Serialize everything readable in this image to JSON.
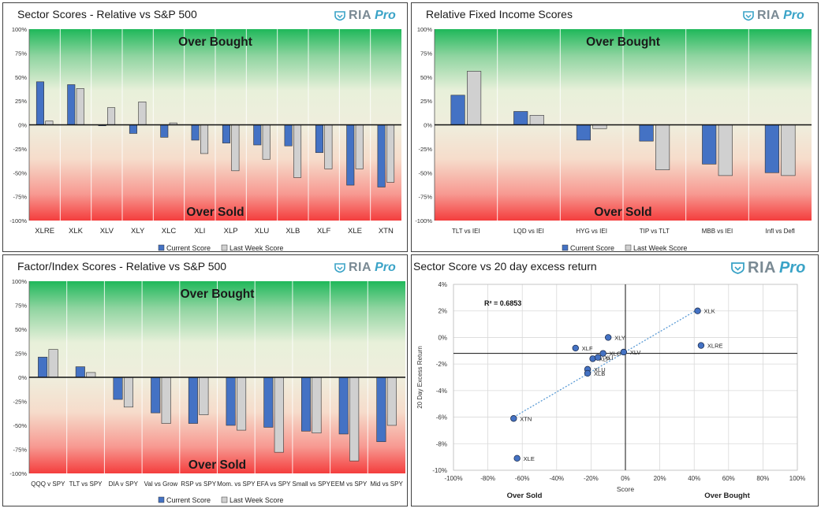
{
  "brand": {
    "ria": "RIA",
    "pro": "Pro"
  },
  "colors": {
    "current": "#4472c4",
    "last": "#d0d0d0",
    "dot": "#4472c4",
    "trend": "#5b9bd5"
  },
  "zones": {
    "overbought": "Over Bought",
    "oversold": "Over Sold"
  },
  "chart_data": [
    {
      "type": "bar",
      "title": "Sector Scores - Relative vs S&P 500",
      "categories": [
        "XLRE",
        "XLK",
        "XLV",
        "XLY",
        "XLC",
        "XLI",
        "XLP",
        "XLU",
        "XLB",
        "XLF",
        "XLE",
        "XTN"
      ],
      "series": [
        {
          "name": "Current Score",
          "values": [
            45,
            42,
            -1,
            -9,
            -13,
            -16,
            -19,
            -21,
            -22,
            -29,
            -63,
            -65
          ]
        },
        {
          "name": "Last Week Score",
          "values": [
            4,
            38,
            18,
            24,
            2,
            -30,
            -48,
            -36,
            -55,
            -46,
            -46,
            -60
          ]
        }
      ],
      "ylim": [
        -100,
        100
      ],
      "yticks": [
        "100%",
        "75%",
        "50%",
        "25%",
        "0%",
        "-25%",
        "-50%",
        "-75%",
        "-100%"
      ],
      "annotations": [
        "Over Bought",
        "Over Sold"
      ]
    },
    {
      "type": "bar",
      "title": "Relative Fixed Income Scores",
      "categories": [
        "TLT vs IEI",
        "LQD vs IEI",
        "HYG vs IEI",
        "TIP vs TLT",
        "MBB vs IEI",
        "Infl vs Defl"
      ],
      "series": [
        {
          "name": "Current Score",
          "values": [
            31,
            14,
            -16,
            -17,
            -41,
            -50
          ]
        },
        {
          "name": "Last Week Score",
          "values": [
            56,
            10,
            -4,
            -47,
            -53,
            -53
          ]
        }
      ],
      "ylim": [
        -100,
        100
      ],
      "yticks": [
        "100%",
        "75%",
        "50%",
        "25%",
        "0%",
        "-25%",
        "-50%",
        "-75%",
        "-100%"
      ],
      "annotations": [
        "Over Bought",
        "Over Sold"
      ]
    },
    {
      "type": "bar",
      "title": "Factor/Index Scores - Relative vs S&P 500",
      "categories": [
        "QQQ v SPY",
        "TLT vs SPY",
        "DIA v SPY",
        "Val vs Grow",
        "RSP vs SPY",
        "Mom. vs SPY",
        "EFA vs SPY",
        "Small vs SPY",
        "EEM vs SPY",
        "Mid vs SPY"
      ],
      "series": [
        {
          "name": "Current Score",
          "values": [
            21,
            11,
            -23,
            -37,
            -48,
            -50,
            -52,
            -56,
            -59,
            -67
          ]
        },
        {
          "name": "Last Week Score",
          "values": [
            29,
            5,
            -31,
            -48,
            -39,
            -55,
            -78,
            -58,
            -87,
            -50
          ]
        }
      ],
      "ylim": [
        -100,
        100
      ],
      "yticks": [
        "100%",
        "75%",
        "50%",
        "25%",
        "0%",
        "-25%",
        "-50%",
        "-75%",
        "-100%"
      ],
      "annotations": [
        "Over Bought",
        "Over Sold"
      ]
    },
    {
      "type": "scatter",
      "title": "Sector Score vs 20 day excess return",
      "xlabel": "Score",
      "ylabel": "20 Day Excess Return",
      "xlim": [
        -100,
        100
      ],
      "ylim": [
        -10,
        4
      ],
      "xticks": [
        "-100%",
        "-80%",
        "-60%",
        "-40%",
        "-20%",
        "0%",
        "20%",
        "40%",
        "60%",
        "80%",
        "100%"
      ],
      "yticks": [
        "4%",
        "2%",
        "0%",
        "-2%",
        "-4%",
        "-6%",
        "-8%",
        "-10%"
      ],
      "r2": "R² = 0.6853",
      "zone_labels": {
        "left": "Over Sold",
        "right": "Over Bought"
      },
      "points": [
        {
          "label": "XLK",
          "x": 42,
          "y": 2.0
        },
        {
          "label": "XLRE",
          "x": 44,
          "y": -0.6
        },
        {
          "label": "XLY",
          "x": -10,
          "y": 0.0
        },
        {
          "label": "XLF",
          "x": -29,
          "y": -0.8
        },
        {
          "label": "XLC",
          "x": -13,
          "y": -1.2
        },
        {
          "label": "XLV",
          "x": -1,
          "y": -1.1
        },
        {
          "label": "XLP",
          "x": -19,
          "y": -1.6
        },
        {
          "label": "XLI",
          "x": -16,
          "y": -1.5
        },
        {
          "label": "XLU",
          "x": -22,
          "y": -2.4
        },
        {
          "label": "XLB",
          "x": -22,
          "y": -2.7
        },
        {
          "label": "XTN",
          "x": -65,
          "y": -6.1
        },
        {
          "label": "XLE",
          "x": -63,
          "y": -9.1
        }
      ],
      "trendline": {
        "x": [
          -65,
          42
        ],
        "y": [
          -6.0,
          2.1
        ]
      }
    }
  ]
}
